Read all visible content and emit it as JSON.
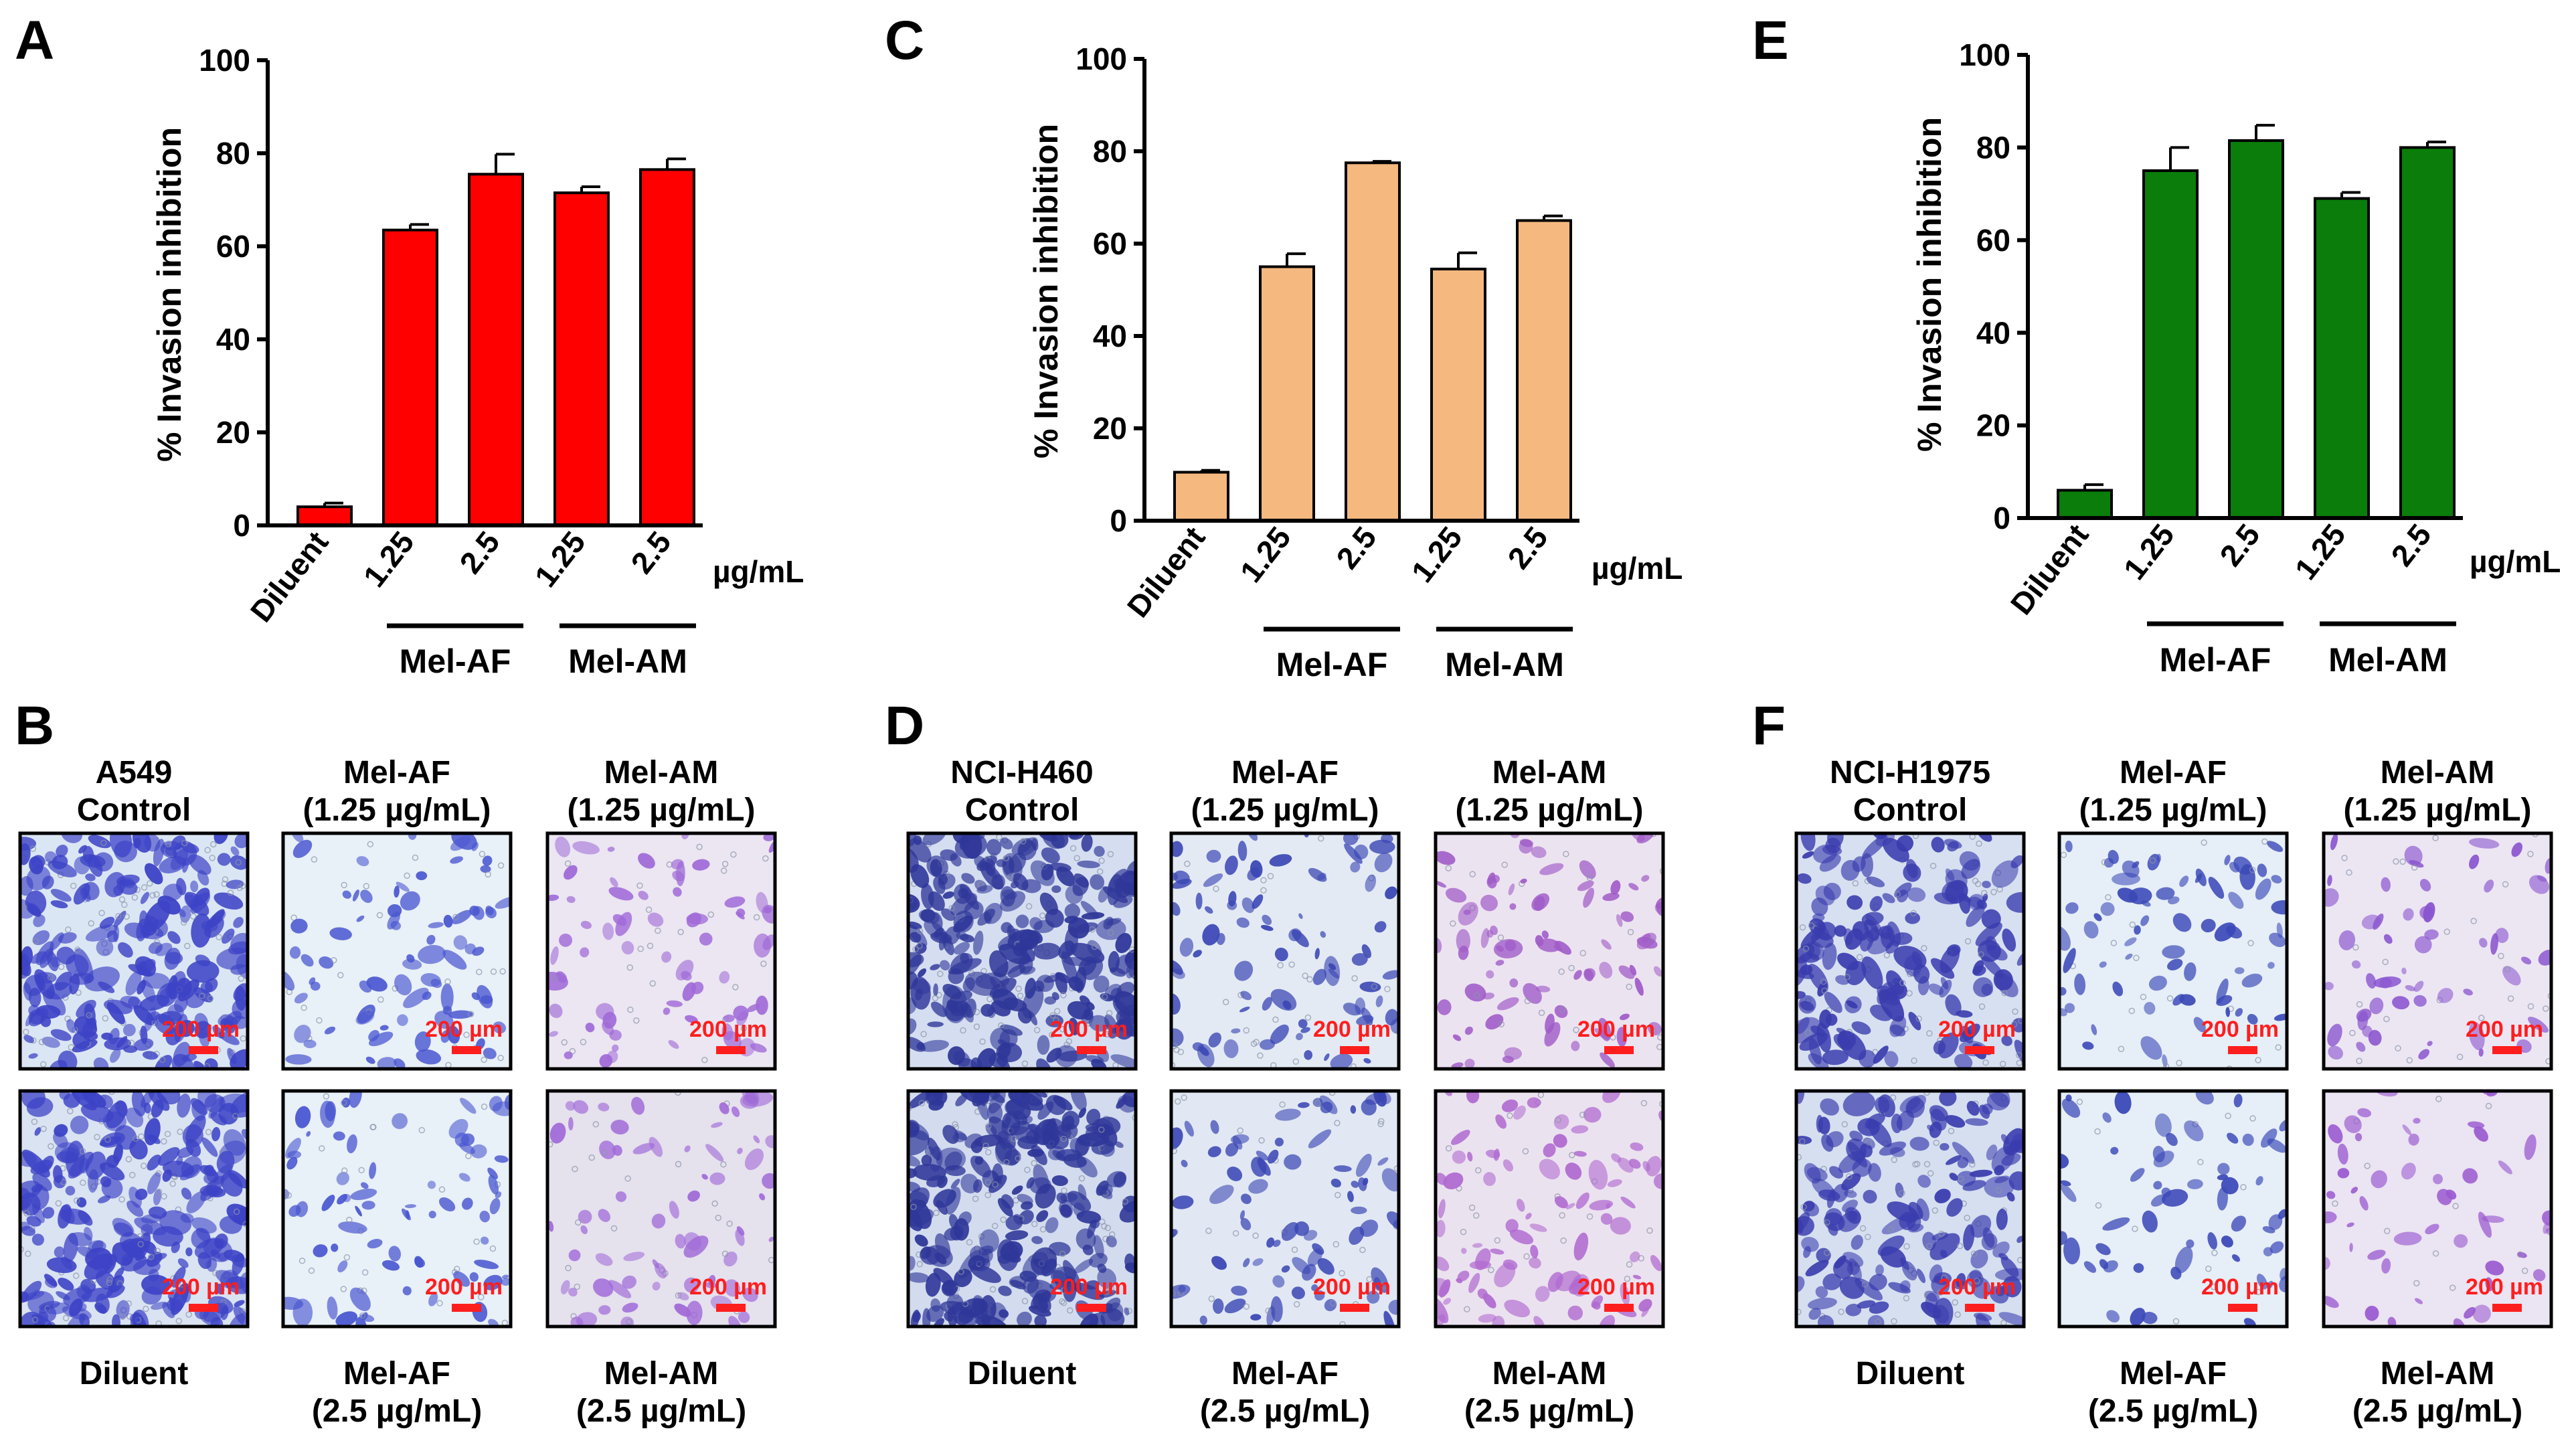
{
  "chart_data": [
    {
      "panel": "A",
      "type": "bar",
      "color": "#ff0000",
      "categories": [
        "Diluent",
        "1.25",
        "2.5",
        "1.25",
        "2.5"
      ],
      "values": [
        4,
        63.5,
        75.5,
        71.5,
        76.5
      ],
      "errors": [
        0.8,
        1.2,
        4.3,
        1.3,
        2.3
      ],
      "ylabel": "% Invasion inhibition",
      "ylim": [
        0,
        100
      ],
      "yticks": [
        0,
        20,
        40,
        60,
        80,
        100
      ],
      "unit_label": "µg/mL",
      "groups": [
        {
          "label": "Mel-AF",
          "categories": [
            1,
            2
          ]
        },
        {
          "label": "Mel-AM",
          "categories": [
            3,
            4
          ]
        }
      ]
    },
    {
      "panel": "C",
      "type": "bar",
      "color": "#f5b87f",
      "categories": [
        "Diluent",
        "1.25",
        "2.5",
        "1.25",
        "2.5"
      ],
      "values": [
        10.5,
        55,
        77.5,
        54.5,
        65
      ],
      "errors": [
        0.4,
        2.8,
        0.3,
        3.5,
        1.0
      ],
      "ylabel": "% Invasion inhibition",
      "ylim": [
        0,
        100
      ],
      "yticks": [
        0,
        20,
        40,
        60,
        80,
        100
      ],
      "unit_label": "µg/mL",
      "groups": [
        {
          "label": "Mel-AF",
          "categories": [
            1,
            2
          ]
        },
        {
          "label": "Mel-AM",
          "categories": [
            3,
            4
          ]
        }
      ]
    },
    {
      "panel": "E",
      "type": "bar",
      "color": "#0a7d0a",
      "categories": [
        "Diluent",
        "1.25",
        "2.5",
        "1.25",
        "2.5"
      ],
      "values": [
        6,
        75,
        81.5,
        69,
        80
      ],
      "errors": [
        1.2,
        5.0,
        3.3,
        1.3,
        1.2
      ],
      "ylabel": "% Invasion inhibition",
      "ylim": [
        0,
        100
      ],
      "yticks": [
        0,
        20,
        40,
        60,
        80,
        100
      ],
      "unit_label": "µg/mL",
      "groups": [
        {
          "label": "Mel-AF",
          "categories": [
            1,
            2
          ]
        },
        {
          "label": "Mel-AM",
          "categories": [
            3,
            4
          ]
        }
      ]
    }
  ],
  "micro_panels": [
    {
      "panel": "B",
      "top_captions": [
        [
          "A549",
          "Control"
        ],
        [
          "Mel-AF",
          "(1.25 µg/mL)"
        ],
        [
          "Mel-AM",
          "(1.25 µg/mL)"
        ]
      ],
      "bottom_captions": [
        [
          "Diluent"
        ],
        [
          "Mel-AF",
          "(2.5 µg/mL)"
        ],
        [
          "Mel-AM",
          "(2.5 µg/mL)"
        ]
      ],
      "scale_bar": "200 µm",
      "stain_colors": [
        "#3d43c6",
        "#4a57d0",
        "#a06ad8",
        "#3d43c6",
        "#4a57d0",
        "#a06ad8"
      ],
      "background_colors": [
        "#dbe6f4",
        "#e8f0f8",
        "#ebe6f1",
        "#d9e3f2",
        "#e8f0f8",
        "#e5e1ed"
      ]
    },
    {
      "panel": "D",
      "top_captions": [
        [
          "NCI-H460",
          "Control"
        ],
        [
          "Mel-AF",
          "(1.25 µg/mL)"
        ],
        [
          "Mel-AM",
          "(1.25 µg/mL)"
        ]
      ],
      "bottom_captions": [
        [
          "Diluent"
        ],
        [
          "Mel-AF",
          "(2.5 µg/mL)"
        ],
        [
          "Mel-AM",
          "(2.5 µg/mL)"
        ]
      ],
      "scale_bar": "200 µm",
      "stain_colors": [
        "#2f3799",
        "#3a46b4",
        "#a05cc8",
        "#2f3799",
        "#3a46b4",
        "#b06ad0"
      ],
      "background_colors": [
        "#d5def0",
        "#e3eaf4",
        "#ece3f0",
        "#d3dcee",
        "#e1e8f3",
        "#ebe2ef"
      ]
    },
    {
      "panel": "F",
      "top_captions": [
        [
          "NCI-H1975",
          "Control"
        ],
        [
          "Mel-AF",
          "(1.25 µg/mL)"
        ],
        [
          "Mel-AM",
          "(1.25 µg/mL)"
        ]
      ],
      "bottom_captions": [
        [
          "Diluent"
        ],
        [
          "Mel-AF",
          "(2.5 µg/mL)"
        ],
        [
          "Mel-AM",
          "(2.5 µg/mL)"
        ]
      ],
      "scale_bar": "200 µm",
      "stain_colors": [
        "#3a3cae",
        "#3b49b8",
        "#8a55cf",
        "#3a3cae",
        "#3b49b8",
        "#9a5ad0"
      ],
      "background_colors": [
        "#d7e0f1",
        "#e6eef7",
        "#ece6f3",
        "#d5dff0",
        "#e6eef7",
        "#ebe4f2"
      ]
    }
  ]
}
